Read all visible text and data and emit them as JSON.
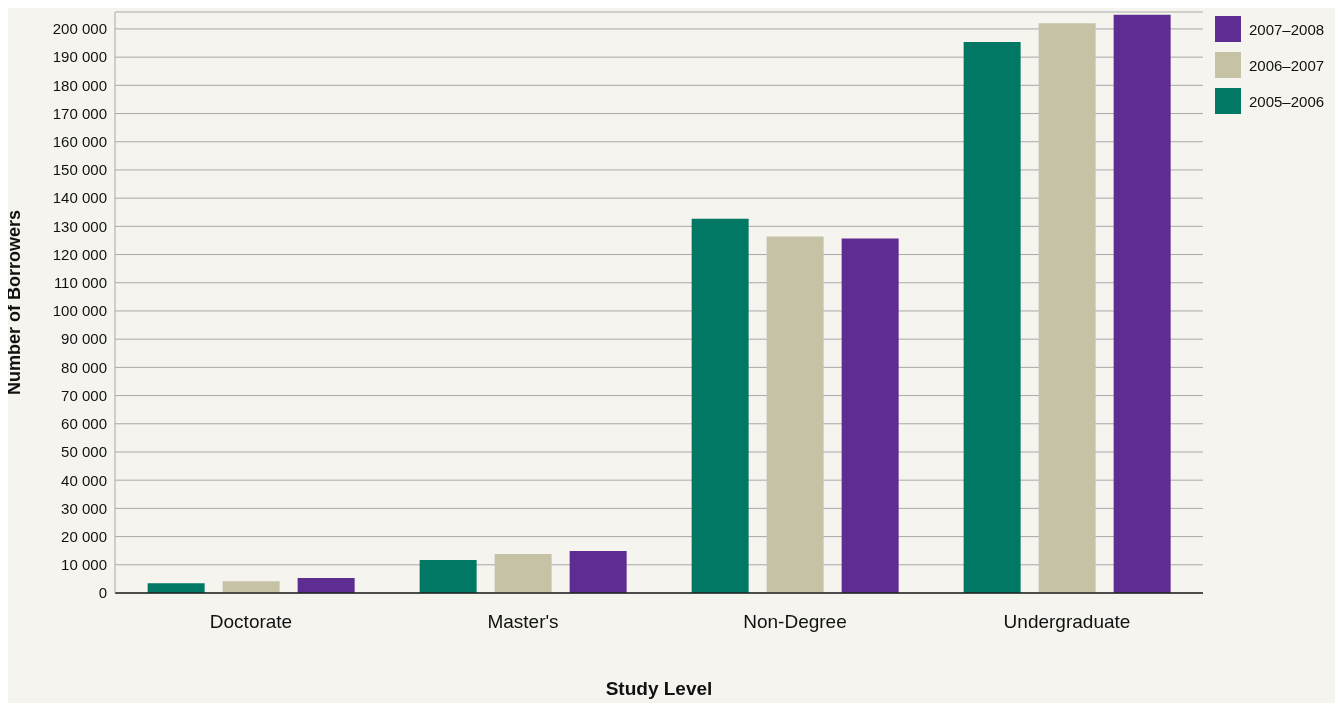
{
  "chart_data": {
    "type": "bar",
    "xlabel": "Study Level",
    "ylabel": "Number of Borrowers",
    "categories": [
      "Doctorate",
      "Master's",
      "Non-Degree",
      "Undergraduate"
    ],
    "series": [
      {
        "name": "2005–2006",
        "color": "#007864",
        "values": [
          3500,
          11700,
          132700,
          195400
        ]
      },
      {
        "name": "2006–2007",
        "color": "#c6c2a6",
        "values": [
          4200,
          13800,
          126400,
          202000
        ]
      },
      {
        "name": "2007–2008",
        "color": "#5e2d91",
        "values": [
          5300,
          14900,
          125700,
          205000
        ]
      }
    ],
    "ylim": [
      0,
      206000
    ],
    "yticks": [
      0,
      {
        "value": 10000,
        "label": "10 000"
      },
      {
        "value": 20000,
        "label": "20 000"
      },
      {
        "value": 30000,
        "label": "30 000"
      },
      {
        "value": 40000,
        "label": "40 000"
      },
      {
        "value": 50000,
        "label": "50 000"
      },
      {
        "value": 60000,
        "label": "60 000"
      },
      {
        "value": 70000,
        "label": "70 000"
      },
      {
        "value": 80000,
        "label": "80 000"
      },
      {
        "value": 90000,
        "label": "90 000"
      },
      {
        "value": 100000,
        "label": "100 000"
      },
      {
        "value": 110000,
        "label": "110 000"
      },
      {
        "value": 120000,
        "label": "120 000"
      },
      {
        "value": 130000,
        "label": "130 000"
      },
      {
        "value": 140000,
        "label": "140 000"
      },
      {
        "value": 150000,
        "label": "150 000"
      },
      {
        "value": 160000,
        "label": "160 000"
      },
      {
        "value": 170000,
        "label": "170 000"
      },
      {
        "value": 180000,
        "label": "180 000"
      },
      {
        "value": 190000,
        "label": "190 000"
      },
      {
        "value": 200000,
        "label": "200 000"
      }
    ],
    "grid": "y",
    "legend": "top right"
  }
}
